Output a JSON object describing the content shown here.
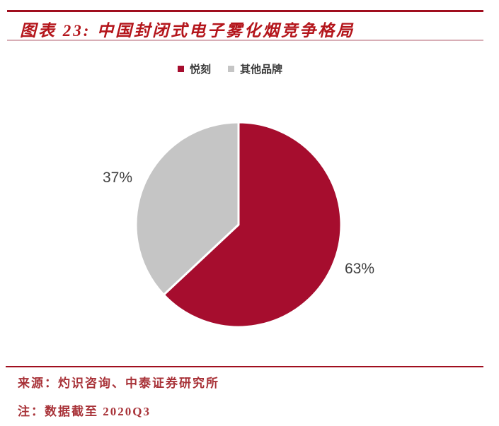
{
  "header": {
    "title": "图表 23: 中国封闭式电子雾化烟竞争格局"
  },
  "chart_data": {
    "type": "pie",
    "title": "中国封闭式电子雾化烟竞争格局",
    "categories": [
      "悦刻",
      "其他品牌"
    ],
    "values": [
      63,
      37
    ],
    "data_labels": [
      "63%",
      "37%"
    ],
    "colors": [
      "#a60d2e",
      "#c5c5c5"
    ],
    "legend_position": "top",
    "start_angle_deg": 0,
    "direction": "clockwise",
    "slice_border_color": "#ffffff"
  },
  "legend": {
    "items": [
      {
        "label": "悦刻",
        "color": "#a60d2e"
      },
      {
        "label": "其他品牌",
        "color": "#c5c5c5"
      }
    ]
  },
  "pie_labels": {
    "relx": "63%",
    "others": "37%"
  },
  "footer": {
    "source": "来源：灼识咨询、中泰证券研究所",
    "note": "注：数据截至 2020Q3"
  },
  "colors": {
    "rule_dark_red": "#a00e1e",
    "title_red": "#b4151b",
    "rule_pink": "#d8aeb6",
    "footer_red": "#a83238",
    "percent_label_gray": "#404040"
  }
}
